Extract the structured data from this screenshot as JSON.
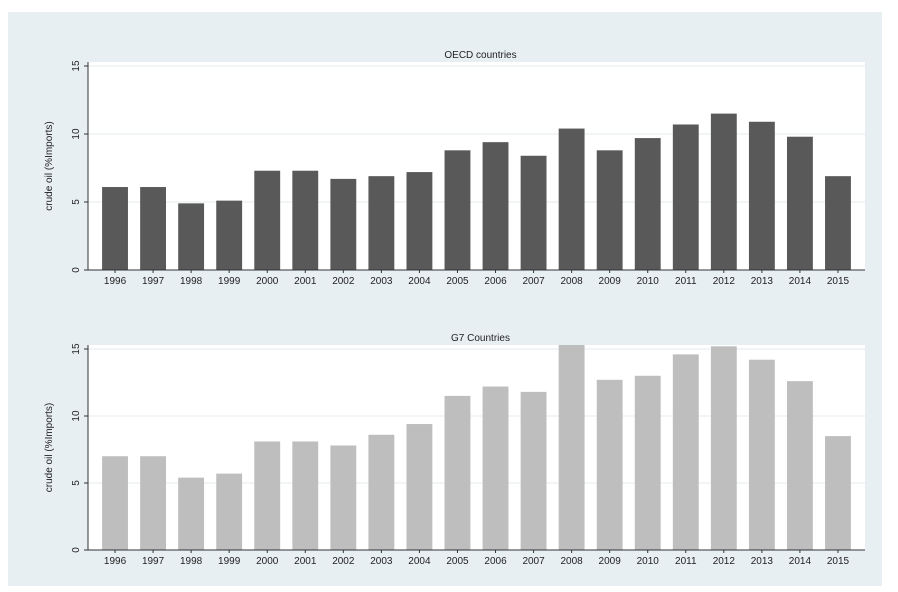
{
  "chart_data": [
    {
      "type": "bar",
      "title": "OECD countries",
      "xlabel": "",
      "ylabel": "crude oil (%Imports)",
      "ylim": [
        0,
        15
      ],
      "yticks": [
        0,
        5,
        10,
        15
      ],
      "grid": true,
      "color": "#595959",
      "categories": [
        "1996",
        "1997",
        "1998",
        "1999",
        "2000",
        "2001",
        "2002",
        "2003",
        "2004",
        "2005",
        "2006",
        "2007",
        "2008",
        "2009",
        "2010",
        "2011",
        "2012",
        "2013",
        "2014",
        "2015"
      ],
      "values": [
        6.1,
        6.1,
        4.9,
        5.1,
        7.3,
        7.3,
        6.7,
        6.9,
        7.2,
        8.8,
        9.4,
        8.4,
        10.4,
        8.8,
        9.7,
        10.7,
        11.5,
        10.9,
        9.8,
        6.9
      ]
    },
    {
      "type": "bar",
      "title": "G7 Countries",
      "xlabel": "",
      "ylabel": "crude oil (%Imports)",
      "ylim": [
        0,
        15
      ],
      "yticks": [
        0,
        5,
        10,
        15
      ],
      "grid": true,
      "color": "#bebebe",
      "categories": [
        "1996",
        "1997",
        "1998",
        "1999",
        "2000",
        "2001",
        "2002",
        "2003",
        "2004",
        "2005",
        "2006",
        "2007",
        "2008",
        "2009",
        "2010",
        "2011",
        "2012",
        "2013",
        "2014",
        "2015"
      ],
      "values": [
        7.0,
        7.0,
        5.4,
        5.7,
        8.1,
        8.1,
        7.8,
        8.6,
        9.4,
        11.5,
        12.2,
        11.8,
        15.3,
        12.7,
        13.0,
        14.6,
        15.2,
        14.2,
        12.6,
        8.5
      ]
    }
  ]
}
